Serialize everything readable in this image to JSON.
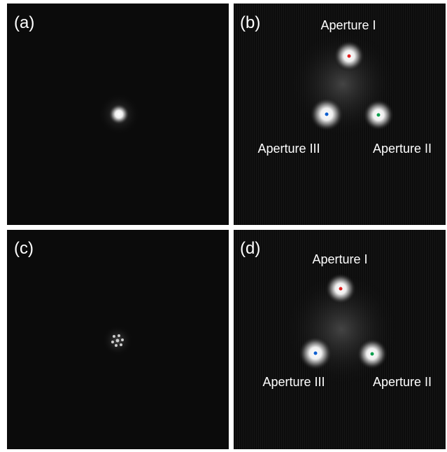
{
  "panels": [
    {
      "label": "(a)"
    },
    {
      "label": "(b)",
      "apertures": [
        "Aperture I",
        "Aperture II",
        "Aperture III"
      ]
    },
    {
      "label": "(c)"
    },
    {
      "label": "(d)",
      "apertures": [
        "Aperture I",
        "Aperture II",
        "Aperture III"
      ]
    }
  ]
}
